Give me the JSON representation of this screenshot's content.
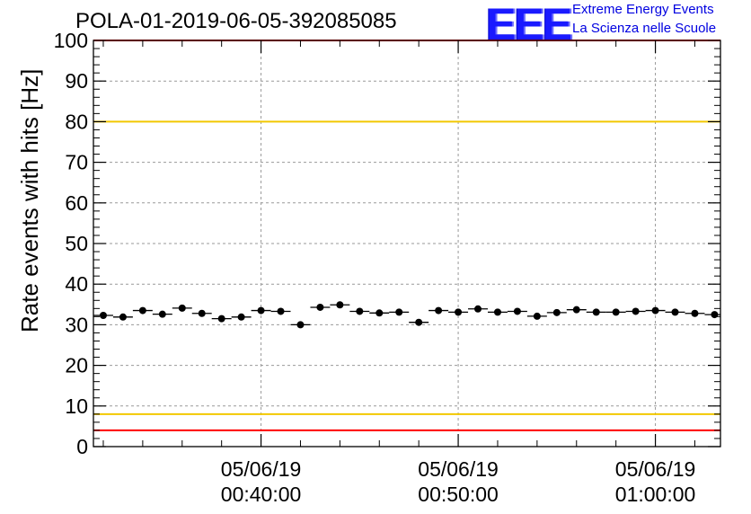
{
  "header": {
    "title": "POLA-01-2019-06-05-392085085",
    "logo_text": "EEE",
    "logo_line1": "Extreme Energy Events",
    "logo_line2": "La Scienza nelle Scuole"
  },
  "colors": {
    "logo": "#1a1aff",
    "yellow_line": "#f2c800",
    "red_line": "#ff0000",
    "grid": "#999999",
    "points": "#000000"
  },
  "chart_data": {
    "type": "scatter",
    "title": "POLA-01-2019-06-05-392085085",
    "ylabel": "Rate events with hits [Hz]",
    "xlabel": "",
    "ylim": [
      0,
      100
    ],
    "yticks": [
      0,
      10,
      20,
      30,
      40,
      50,
      60,
      70,
      80,
      90,
      100
    ],
    "x_unit": "minutes",
    "xlim": [
      31.5,
      63.3
    ],
    "xticks": [
      {
        "x": 40,
        "date": "05/06/19",
        "time": "00:40:00"
      },
      {
        "x": 50,
        "date": "05/06/19",
        "time": "00:50:00"
      },
      {
        "x": 60,
        "date": "05/06/19",
        "time": "01:00:00"
      }
    ],
    "bin_width_minutes": 1,
    "series": [
      {
        "name": "rate",
        "x": [
          32,
          33,
          34,
          35,
          36,
          37,
          38,
          39,
          40,
          41,
          42,
          43,
          44,
          45,
          46,
          47,
          48,
          49,
          50,
          51,
          52,
          53,
          54,
          55,
          56,
          57,
          58,
          59,
          60,
          61,
          62,
          63
        ],
        "values": [
          32.3,
          31.9,
          33.5,
          32.6,
          34.1,
          32.8,
          31.5,
          31.9,
          33.5,
          33.3,
          30.0,
          34.3,
          34.9,
          33.3,
          32.9,
          33.1,
          30.6,
          33.5,
          33.1,
          33.9,
          33.1,
          33.3,
          32.1,
          33.0,
          33.7,
          33.1,
          33.1,
          33.3,
          33.5,
          33.1,
          32.8,
          32.5
        ]
      }
    ],
    "reference_lines": [
      {
        "name": "upper-red-limit",
        "y": 100,
        "color": "#ff0000"
      },
      {
        "name": "upper-yellow-limit",
        "y": 80,
        "color": "#f2c800"
      },
      {
        "name": "lower-yellow-limit",
        "y": 8,
        "color": "#f2c800"
      },
      {
        "name": "lower-red-limit",
        "y": 4,
        "color": "#ff0000"
      }
    ],
    "grid": true
  }
}
